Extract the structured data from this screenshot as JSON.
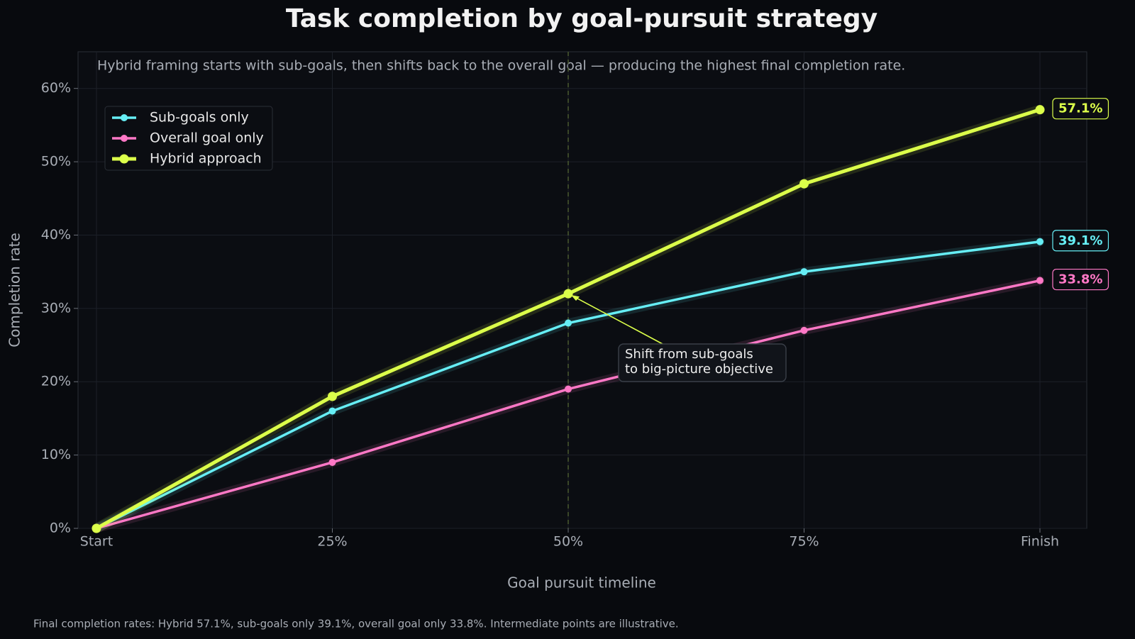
{
  "chart_data": {
    "type": "line",
    "title": "Task completion by goal-pursuit strategy",
    "subtitle": "Hybrid framing starts with sub-goals, then shifts back to the overall goal — producing the highest final completion rate.",
    "xlabel": "Goal pursuit timeline",
    "ylabel": "Completion rate",
    "footnote": "Final completion rates: Hybrid 57.1%, sub-goals only 39.1%, overall goal only 33.8%. Intermediate points are illustrative.",
    "categories": [
      "Start",
      "25%",
      "50%",
      "75%",
      "Finish"
    ],
    "series": [
      {
        "name": "Sub-goals only",
        "color": "#66eef5",
        "values": [
          0,
          16,
          28,
          35,
          39.1
        ],
        "value_labels": [
          null,
          null,
          null,
          null,
          "39.1%"
        ]
      },
      {
        "name": "Overall goal only",
        "color": "#ff78c6",
        "values": [
          0,
          9,
          19,
          27,
          33.8
        ],
        "value_labels": [
          null,
          null,
          null,
          null,
          "33.8%"
        ]
      },
      {
        "name": "Hybrid approach",
        "color": "#dcff4a",
        "values": [
          0,
          18,
          32,
          47,
          57.1
        ],
        "value_labels": [
          null,
          null,
          null,
          null,
          "57.1%"
        ]
      }
    ],
    "ylim": [
      0,
      65
    ],
    "yticks": [
      {
        "value": 0,
        "label": "0%"
      },
      {
        "value": 10,
        "label": "10%"
      },
      {
        "value": 20,
        "label": "20%"
      },
      {
        "value": 30,
        "label": "30%"
      },
      {
        "value": 40,
        "label": "40%"
      },
      {
        "value": 50,
        "label": "50%"
      },
      {
        "value": 60,
        "label": "60%"
      }
    ],
    "grid": true,
    "legend": "upper left",
    "annotation": [
      "Shift from sub-goals",
      "to big-picture objective"
    ]
  }
}
